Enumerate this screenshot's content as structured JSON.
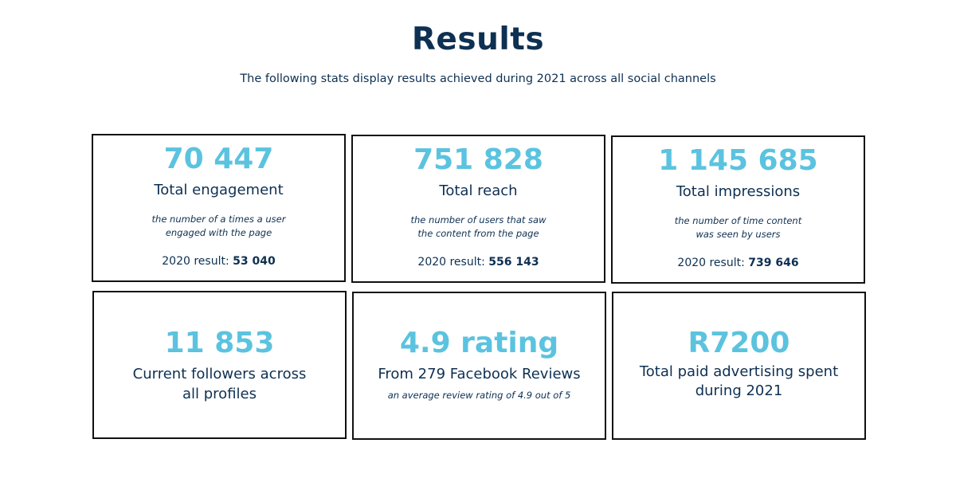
{
  "header": {
    "title": "Results",
    "subtitle": "The following stats display results achieved during 2021 across all social channels"
  },
  "cards": [
    {
      "value": "70 447",
      "label": "Total engagement",
      "desc_line1": "the number of a times a user",
      "desc_line2": "engaged with the page",
      "prev_label": "2020 result:",
      "prev_value": "53 040"
    },
    {
      "value": "751 828",
      "label": "Total reach",
      "desc_line1": "the number of users that saw",
      "desc_line2": "the content from the page",
      "prev_label": "2020 result:",
      "prev_value": "556 143"
    },
    {
      "value": "1 145 685",
      "label": "Total impressions",
      "desc_line1": "the number of time content",
      "desc_line2": "was seen by users",
      "prev_label": "2020 result:",
      "prev_value": "739 646"
    },
    {
      "value": "11 853",
      "label_line1": "Current followers across",
      "label_line2": "all profiles"
    },
    {
      "value": "4.9 rating",
      "label": "From 279 Facebook Reviews",
      "desc": "an average review rating of 4.9 out of 5"
    },
    {
      "value": "R7200",
      "label_line1": "Total paid advertising spent",
      "label_line2": "during 2021"
    }
  ],
  "colors": {
    "accent": "#5bc3df",
    "text": "#0e3052",
    "border": "#111111"
  }
}
